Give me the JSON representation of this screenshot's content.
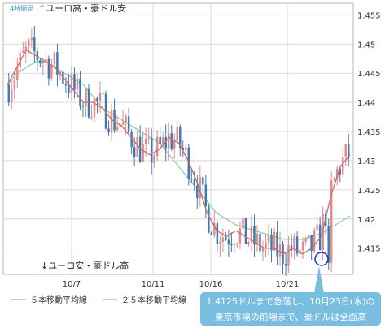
{
  "chart_data": {
    "type": "candlestick",
    "chart_label_top": "↑ユーロ高・豪ドル安",
    "chart_label_bottom": "↓ユーロ安・豪ドル高",
    "timeframe_label": "4時間足",
    "x_tick_labels": [
      "10/7",
      "10/11",
      "10/16",
      "10/21"
    ],
    "y_ticks": [
      1.415,
      1.42,
      1.425,
      1.43,
      1.435,
      1.44,
      1.445,
      1.45,
      1.455
    ],
    "y_tick_labels": [
      "1.415",
      "1.42",
      "1.425",
      "1.43",
      "1.435",
      "1.44",
      "1.445",
      "1.45",
      "1.455"
    ],
    "ylim": [
      1.4105,
      1.457
    ],
    "grid": true,
    "series": [
      {
        "name": "５本移動平均線",
        "values_anchor": [
          1.443,
          1.446,
          1.449,
          1.448,
          1.447,
          1.446,
          1.444,
          1.442,
          1.44,
          1.44,
          1.439,
          1.437,
          1.436,
          1.434,
          1.432,
          1.431,
          1.432,
          1.434,
          1.433,
          1.43,
          1.426,
          1.421,
          1.418,
          1.417,
          1.418,
          1.417,
          1.416,
          1.415,
          1.415,
          1.414,
          1.415,
          1.414,
          1.415,
          1.417,
          1.424,
          1.429,
          1.431
        ]
      },
      {
        "name": "２５本移動平均線",
        "values_anchor": [
          1.443,
          1.445,
          1.446,
          1.447,
          1.447,
          1.446,
          1.445,
          1.444,
          1.443,
          1.441,
          1.439,
          1.438,
          1.437,
          1.436,
          1.435,
          1.434,
          1.433,
          1.431,
          1.429,
          1.427,
          1.425,
          1.423,
          1.421,
          1.42,
          1.419,
          1.4185,
          1.418,
          1.4175,
          1.417,
          1.4165,
          1.4165,
          1.4165,
          1.417,
          1.4175,
          1.4185,
          1.4195,
          1.4205
        ]
      }
    ],
    "legend": [
      {
        "label": "５本移動平均線",
        "color": "#e0a0a0"
      },
      {
        "label": "２５本移動平均線",
        "color": "#8fcfa7"
      }
    ],
    "candle_colors": {
      "up": "#e08c8c",
      "down": "#3d7ab3"
    },
    "annotation": {
      "line1": "1.4125ドルまで急落し、10月23日(水)の",
      "line2": "東京市場の前場まで、豪ドルは全面高",
      "marker": "circle",
      "marker_value": 1.4125
    }
  }
}
